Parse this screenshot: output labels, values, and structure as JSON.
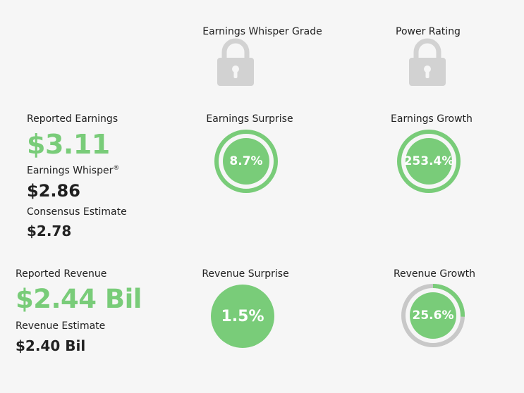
{
  "headers": {
    "whisper_grade": "Earnings Whisper Grade",
    "power_rating": "Power Rating"
  },
  "locks": {
    "icon": "lock-icon",
    "color": "#d2d2d2"
  },
  "earnings": {
    "reported_label": "Reported Earnings",
    "reported_value": "$3.11",
    "whisper_label": "Earnings Whisper",
    "whisper_mark": "®",
    "whisper_value": "$2.86",
    "consensus_label": "Consensus Estimate",
    "consensus_value": "$2.78",
    "surprise_label": "Earnings Surprise",
    "surprise_value": "8.7%",
    "growth_label": "Earnings Growth",
    "growth_value": "253.4%"
  },
  "revenue": {
    "reported_label": "Reported Revenue",
    "reported_value": "$2.44 Bil",
    "estimate_label": "Revenue Estimate",
    "estimate_value": "$2.40 Bil",
    "surprise_label": "Revenue Surprise",
    "surprise_value": "1.5%",
    "growth_label": "Revenue Growth",
    "growth_value": "25.6%",
    "growth_fraction": 0.256
  },
  "colors": {
    "accent_green": "#79cc79",
    "ring_gray": "#c8c8c8",
    "background": "#f6f6f6"
  }
}
